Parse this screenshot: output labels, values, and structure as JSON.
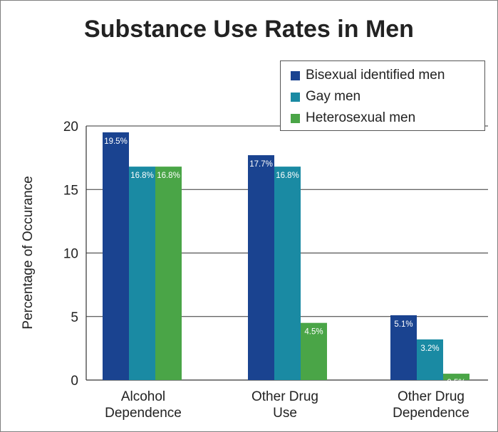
{
  "chart_data": {
    "type": "bar",
    "title": "Substance Use Rates in Men",
    "ylabel": "Percentage of Occurance",
    "xlabel": "",
    "ylim": [
      0,
      20
    ],
    "yticks": [
      "0",
      "5",
      "10",
      "15",
      "20"
    ],
    "categories": [
      "Alcohol\nDependence",
      "Other Drug\nUse",
      "Other Drug\nDependence"
    ],
    "series": [
      {
        "name": "Bisexual identified men",
        "color": "#1a4390",
        "values": [
          19.5,
          17.7,
          5.1
        ],
        "labels": [
          "19.5%",
          "17.7%",
          "5.1%"
        ]
      },
      {
        "name": "Gay men",
        "color": "#1a8aa3",
        "values": [
          16.8,
          16.8,
          3.2
        ],
        "labels": [
          "16.8%",
          "16.8%",
          "3.2%"
        ]
      },
      {
        "name": "Heterosexual men",
        "color": "#4aa547",
        "values": [
          16.8,
          4.5,
          0.5
        ],
        "labels": [
          "16.8%",
          "4.5%",
          "0.5%"
        ]
      }
    ],
    "grid": true,
    "legend": "top-right"
  }
}
